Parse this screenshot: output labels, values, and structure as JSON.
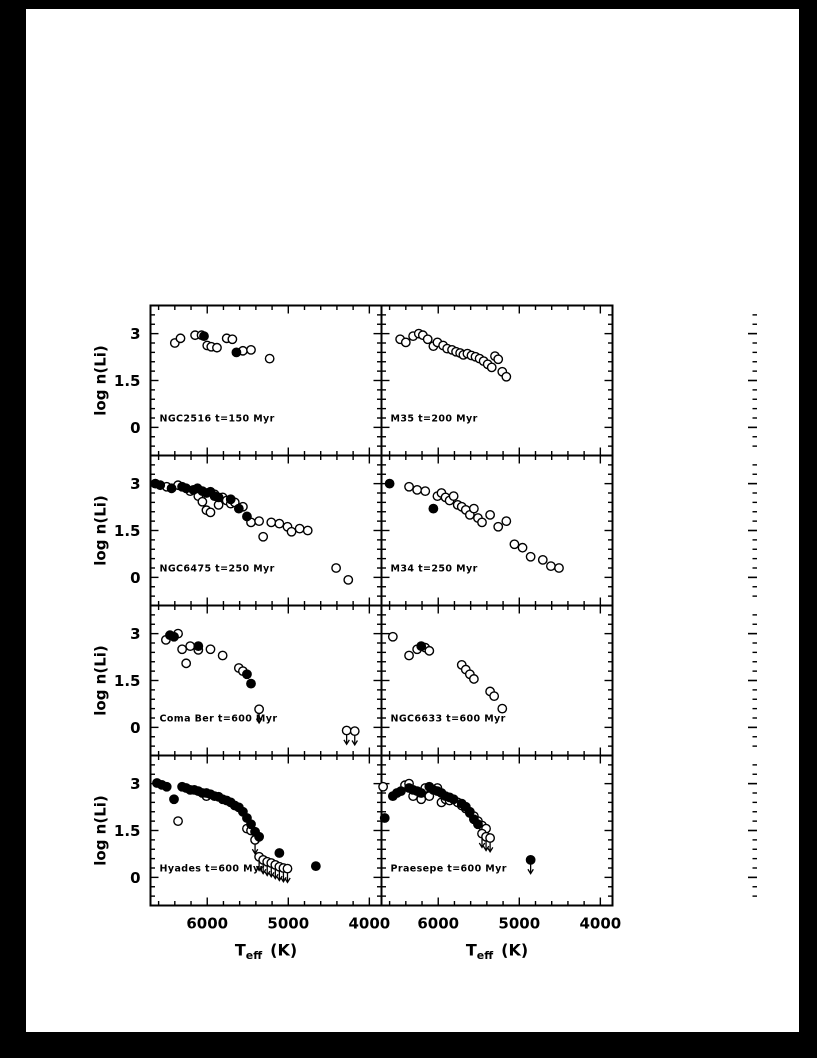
{
  "page": {
    "type": "scanned-journal-figure",
    "background": "#ffffff",
    "scan_border_color": "#000000",
    "ink_color": "#000000"
  },
  "chart_data": {
    "type": "scatter",
    "title": "",
    "description": "Lithium abundance log n(Li) versus effective temperature for eight open clusters; 4x2 grid of panels, x-axis reversed, open/filled circles, downward arrows are upper limits",
    "layout": {
      "rows": 4,
      "cols": 2,
      "grid_lines": false,
      "legend": "none"
    },
    "xlabel": {
      "main": "T",
      "sub": "eff",
      "unit": "(K)"
    },
    "ylabel": "log n(Li)",
    "x_range": [
      6700,
      3850
    ],
    "x_ticks": [
      6000,
      5000,
      4000
    ],
    "x_tick_labels": [
      "6000",
      "5000",
      "4000"
    ],
    "x_minor_step": 200,
    "y_range": [
      -0.9,
      3.9
    ],
    "y_ticks": [
      3,
      1.5,
      0
    ],
    "y_tick_labels": [
      "3",
      "1.5",
      "0"
    ],
    "y_minor_step": 0.3,
    "markers": {
      "open": "open-circle",
      "filled": "filled-circle",
      "open_limits": "open-circle-with-down-arrow",
      "filled_limits": "filled-circle-with-down-arrow"
    },
    "panels": [
      {
        "name": "NGC2516",
        "label": "NGC2516 t=150 Myr",
        "open": [
          [
            6400,
            2.7
          ],
          [
            6330,
            2.85
          ],
          [
            6150,
            2.95
          ],
          [
            6070,
            2.95
          ],
          [
            6000,
            2.62
          ],
          [
            5950,
            2.58
          ],
          [
            5880,
            2.55
          ],
          [
            5760,
            2.85
          ],
          [
            5690,
            2.82
          ],
          [
            5560,
            2.45
          ],
          [
            5460,
            2.48
          ],
          [
            5230,
            2.2
          ]
        ],
        "filled": [
          [
            6040,
            2.92
          ],
          [
            5640,
            2.4
          ]
        ],
        "open_limits": [],
        "filled_limits": []
      },
      {
        "name": "M35",
        "label": "M35 t=200 Myr",
        "open": [
          [
            6470,
            2.82
          ],
          [
            6400,
            2.72
          ],
          [
            6310,
            2.92
          ],
          [
            6240,
            3.0
          ],
          [
            6190,
            2.95
          ],
          [
            6130,
            2.82
          ],
          [
            6060,
            2.6
          ],
          [
            6010,
            2.72
          ],
          [
            5940,
            2.62
          ],
          [
            5890,
            2.52
          ],
          [
            5830,
            2.48
          ],
          [
            5780,
            2.42
          ],
          [
            5730,
            2.38
          ],
          [
            5690,
            2.32
          ],
          [
            5640,
            2.36
          ],
          [
            5590,
            2.3
          ],
          [
            5540,
            2.26
          ],
          [
            5490,
            2.2
          ],
          [
            5440,
            2.12
          ],
          [
            5390,
            2.02
          ],
          [
            5340,
            1.92
          ],
          [
            5300,
            2.28
          ],
          [
            5260,
            2.18
          ],
          [
            5210,
            1.78
          ],
          [
            5160,
            1.62
          ]
        ],
        "filled": [],
        "open_limits": [],
        "filled_limits": []
      },
      {
        "name": "NGC6475",
        "label": "NGC6475 t=250 Myr",
        "open": [
          [
            6500,
            2.9
          ],
          [
            6360,
            2.95
          ],
          [
            6210,
            2.76
          ],
          [
            6110,
            2.6
          ],
          [
            6060,
            2.42
          ],
          [
            6010,
            2.15
          ],
          [
            5960,
            2.08
          ],
          [
            5910,
            2.66
          ],
          [
            5860,
            2.32
          ],
          [
            5810,
            2.56
          ],
          [
            5760,
            2.46
          ],
          [
            5710,
            2.36
          ],
          [
            5660,
            2.4
          ],
          [
            5560,
            2.26
          ],
          [
            5460,
            1.76
          ],
          [
            5360,
            1.8
          ],
          [
            5310,
            1.3
          ],
          [
            5210,
            1.76
          ],
          [
            5110,
            1.72
          ],
          [
            5010,
            1.62
          ],
          [
            4960,
            1.46
          ],
          [
            4860,
            1.56
          ],
          [
            4760,
            1.5
          ],
          [
            4410,
            0.3
          ],
          [
            4260,
            -0.08
          ]
        ],
        "filled": [
          [
            6640,
            3.0
          ],
          [
            6580,
            2.95
          ],
          [
            6440,
            2.85
          ],
          [
            6310,
            2.9
          ],
          [
            6260,
            2.85
          ],
          [
            6170,
            2.8
          ],
          [
            6120,
            2.85
          ],
          [
            6060,
            2.76
          ],
          [
            6010,
            2.7
          ],
          [
            5960,
            2.74
          ],
          [
            5910,
            2.6
          ],
          [
            5860,
            2.56
          ],
          [
            5710,
            2.5
          ],
          [
            5610,
            2.2
          ],
          [
            5510,
            1.95
          ]
        ],
        "open_limits": [],
        "filled_limits": []
      },
      {
        "name": "M34",
        "label": "M34 t=250 Myr",
        "open": [
          [
            6360,
            2.9
          ],
          [
            6260,
            2.8
          ],
          [
            6160,
            2.76
          ],
          [
            6010,
            2.6
          ],
          [
            5960,
            2.7
          ],
          [
            5910,
            2.56
          ],
          [
            5860,
            2.46
          ],
          [
            5810,
            2.6
          ],
          [
            5760,
            2.32
          ],
          [
            5710,
            2.26
          ],
          [
            5660,
            2.16
          ],
          [
            5610,
            2.0
          ],
          [
            5560,
            2.2
          ],
          [
            5510,
            1.9
          ],
          [
            5460,
            1.76
          ],
          [
            5360,
            2.0
          ],
          [
            5260,
            1.62
          ],
          [
            5160,
            1.8
          ],
          [
            5060,
            1.06
          ],
          [
            4960,
            0.95
          ],
          [
            4860,
            0.66
          ],
          [
            4710,
            0.56
          ],
          [
            4610,
            0.36
          ],
          [
            4510,
            0.3
          ]
        ],
        "filled": [
          [
            6600,
            3.0
          ],
          [
            6060,
            2.2
          ]
        ],
        "open_limits": [],
        "filled_limits": []
      },
      {
        "name": "Coma Ber",
        "label": "Coma Ber t=600 Myr",
        "open": [
          [
            6510,
            2.8
          ],
          [
            6360,
            3.0
          ],
          [
            6310,
            2.5
          ],
          [
            6260,
            2.05
          ],
          [
            6210,
            2.6
          ],
          [
            6110,
            2.48
          ],
          [
            5960,
            2.5
          ],
          [
            5810,
            2.3
          ],
          [
            5610,
            1.9
          ],
          [
            5560,
            1.8
          ]
        ],
        "filled": [
          [
            6460,
            2.95
          ],
          [
            6410,
            2.9
          ],
          [
            6110,
            2.6
          ],
          [
            5510,
            1.7
          ],
          [
            5460,
            1.4
          ]
        ],
        "open_limits": [
          [
            5360,
            0.58
          ],
          [
            4280,
            -0.1
          ],
          [
            4180,
            -0.12
          ]
        ],
        "filled_limits": []
      },
      {
        "name": "NGC6633",
        "label": "NGC6633 t=600 Myr",
        "open": [
          [
            6560,
            2.9
          ],
          [
            6360,
            2.3
          ],
          [
            6260,
            2.5
          ],
          [
            6160,
            2.55
          ],
          [
            6110,
            2.45
          ],
          [
            5710,
            2.0
          ],
          [
            5660,
            1.85
          ],
          [
            5610,
            1.7
          ],
          [
            5560,
            1.55
          ],
          [
            5360,
            1.15
          ],
          [
            5310,
            1.0
          ],
          [
            5210,
            0.6
          ]
        ],
        "filled": [
          [
            6210,
            2.6
          ]
        ],
        "open_limits": [],
        "filled_limits": []
      },
      {
        "name": "Hyades",
        "label": "Hyades t=600 Myr",
        "open": [
          [
            6360,
            1.8
          ],
          [
            6010,
            2.6
          ],
          [
            5510,
            1.56
          ],
          [
            5460,
            1.5
          ]
        ],
        "filled": [
          [
            6620,
            3.02
          ],
          [
            6560,
            2.96
          ],
          [
            6500,
            2.9
          ],
          [
            6410,
            2.5
          ],
          [
            6310,
            2.9
          ],
          [
            6260,
            2.86
          ],
          [
            6210,
            2.8
          ],
          [
            6160,
            2.8
          ],
          [
            6110,
            2.76
          ],
          [
            6060,
            2.7
          ],
          [
            6010,
            2.7
          ],
          [
            5960,
            2.66
          ],
          [
            5910,
            2.6
          ],
          [
            5860,
            2.58
          ],
          [
            5810,
            2.5
          ],
          [
            5760,
            2.46
          ],
          [
            5710,
            2.4
          ],
          [
            5660,
            2.3
          ],
          [
            5610,
            2.24
          ],
          [
            5560,
            2.1
          ],
          [
            5510,
            1.9
          ],
          [
            5460,
            1.7
          ],
          [
            5410,
            1.46
          ],
          [
            5360,
            1.3
          ],
          [
            5110,
            0.78
          ],
          [
            4660,
            0.36
          ]
        ],
        "open_limits": [
          [
            5410,
            1.2
          ],
          [
            5360,
            0.66
          ],
          [
            5310,
            0.56
          ],
          [
            5260,
            0.5
          ],
          [
            5210,
            0.46
          ],
          [
            5160,
            0.4
          ],
          [
            5110,
            0.34
          ],
          [
            5060,
            0.3
          ],
          [
            5010,
            0.28
          ]
        ],
        "filled_limits": []
      },
      {
        "name": "Praesepe",
        "label": "Praesepe t=600 Myr",
        "open": [
          [
            6680,
            2.9
          ],
          [
            6410,
            2.95
          ],
          [
            6360,
            3.0
          ],
          [
            6310,
            2.6
          ],
          [
            6210,
            2.5
          ],
          [
            6160,
            2.86
          ],
          [
            6110,
            2.6
          ],
          [
            6010,
            2.86
          ],
          [
            5960,
            2.4
          ],
          [
            5910,
            2.5
          ],
          [
            5860,
            2.46
          ],
          [
            5760,
            2.4
          ],
          [
            5710,
            2.3
          ],
          [
            5660,
            2.2
          ],
          [
            5610,
            2.06
          ],
          [
            5560,
            1.96
          ],
          [
            5510,
            1.8
          ],
          [
            5460,
            1.66
          ],
          [
            5410,
            1.56
          ]
        ],
        "filled": [
          [
            6660,
            1.9
          ],
          [
            6560,
            2.6
          ],
          [
            6510,
            2.7
          ],
          [
            6460,
            2.76
          ],
          [
            6360,
            2.86
          ],
          [
            6310,
            2.8
          ],
          [
            6260,
            2.76
          ],
          [
            6210,
            2.7
          ],
          [
            6110,
            2.9
          ],
          [
            6060,
            2.8
          ],
          [
            6010,
            2.76
          ],
          [
            5960,
            2.7
          ],
          [
            5910,
            2.6
          ],
          [
            5860,
            2.56
          ],
          [
            5810,
            2.5
          ],
          [
            5710,
            2.36
          ],
          [
            5660,
            2.26
          ],
          [
            5610,
            2.1
          ],
          [
            5560,
            1.86
          ],
          [
            5510,
            1.7
          ]
        ],
        "open_limits": [
          [
            5460,
            1.4
          ],
          [
            5410,
            1.3
          ],
          [
            5360,
            1.26
          ]
        ],
        "filled_limits": [
          [
            4860,
            0.56
          ]
        ]
      }
    ]
  }
}
